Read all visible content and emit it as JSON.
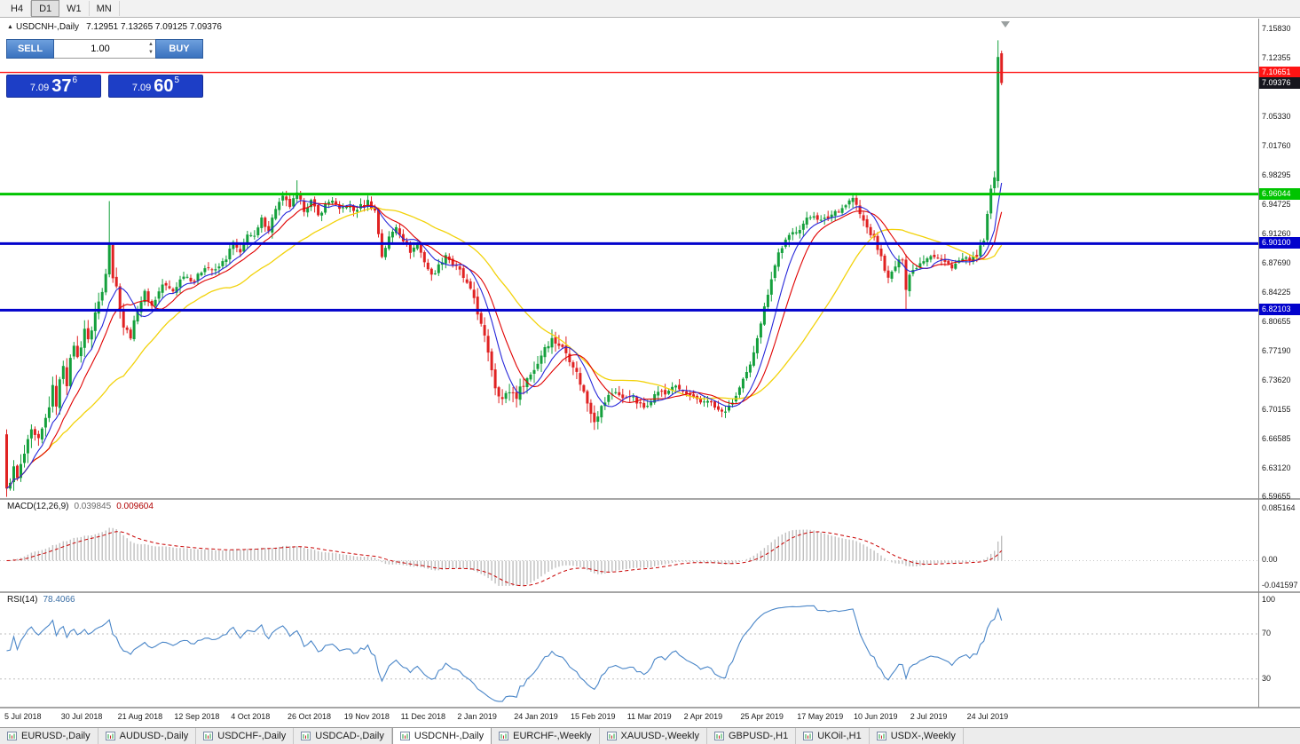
{
  "toolbar": {
    "periods": [
      {
        "label": "H4",
        "active": false
      },
      {
        "label": "D1",
        "active": true
      },
      {
        "label": "W1",
        "active": false
      },
      {
        "label": "MN",
        "active": false
      }
    ]
  },
  "chart_header": {
    "marker": "▲",
    "title": "USDCNH-,Daily",
    "ohlc": "7.12951 7.13265 7.09125 7.09376"
  },
  "trade_panel": {
    "sell_label": "SELL",
    "buy_label": "BUY",
    "volume": "1.00",
    "sell_price": {
      "base": "7.09",
      "pips": "37",
      "point": "6"
    },
    "buy_price": {
      "base": "7.09",
      "pips": "60",
      "point": "5"
    }
  },
  "icons": {
    "volume_up": "▲",
    "volume_down": "▼",
    "title_marker": "▲",
    "shift_marker": "▼",
    "tab_chart_icon": "mini-chart-window"
  },
  "chart_data": {
    "type": "candlestick",
    "symbol": "USDCNH-",
    "timeframe": "Daily",
    "bars": 282,
    "current": {
      "open": 7.12951,
      "high": 7.13265,
      "low": 7.09125,
      "close": 7.09376
    },
    "price_axis": {
      "min": 6.59655,
      "max": 7.1583,
      "ticks": [
        7.1583,
        7.12355,
        7.0533,
        7.0176,
        6.98295,
        6.94725,
        6.9126,
        6.8769,
        6.84225,
        6.80655,
        6.7719,
        6.7362,
        6.70155,
        6.66585,
        6.6312,
        6.59655
      ]
    },
    "price_lines": [
      {
        "price": 7.10651,
        "color": "#ff1414",
        "width": 1.4
      },
      {
        "price": 6.96044,
        "color": "#00c400",
        "width": 3
      },
      {
        "price": 6.901,
        "color": "#0202cc",
        "width": 3
      },
      {
        "price": 6.82103,
        "color": "#0202cc",
        "width": 3
      }
    ],
    "current_price_badge": {
      "price": 7.09376,
      "color": "#16161e"
    },
    "date_labels": [
      "5 Jul 2018",
      "30 Jul 2018",
      "21 Aug 2018",
      "12 Sep 2018",
      "4 Oct 2018",
      "26 Oct 2018",
      "19 Nov 2018",
      "11 Dec 2018",
      "2 Jan 2019",
      "24 Jan 2019",
      "15 Feb 2019",
      "11 Mar 2019",
      "2 Apr 2019",
      "25 Apr 2019",
      "17 May 2019",
      "10 Jun 2019",
      "2 Jul 2019",
      "24 Jul 2019"
    ],
    "colors": {
      "bull": "#14a03c",
      "bear": "#e02222",
      "ma_fast": "#2626d9",
      "ma_mid": "#e00000",
      "ma_slow": "#f2d20a",
      "macd_hist": "#bfbfbf",
      "macd_signal": "#c80000",
      "rsi": "#4a86c8",
      "badge_current": "#16161e"
    },
    "close_anchors": [
      [
        0,
        6.607
      ],
      [
        2,
        6.63
      ],
      [
        3,
        6.618
      ],
      [
        5,
        6.648
      ],
      [
        7,
        6.673
      ],
      [
        9,
        6.662
      ],
      [
        11,
        6.69
      ],
      [
        13,
        6.726
      ],
      [
        14,
        6.71
      ],
      [
        16,
        6.758
      ],
      [
        17,
        6.735
      ],
      [
        19,
        6.782
      ],
      [
        20,
        6.762
      ],
      [
        22,
        6.8
      ],
      [
        23,
        6.782
      ],
      [
        25,
        6.818
      ],
      [
        27,
        6.843
      ],
      [
        28,
        6.87
      ],
      [
        29,
        6.905
      ],
      [
        30,
        6.862
      ],
      [
        31,
        6.848
      ],
      [
        33,
        6.802
      ],
      [
        35,
        6.79
      ],
      [
        37,
        6.822
      ],
      [
        39,
        6.842
      ],
      [
        41,
        6.826
      ],
      [
        44,
        6.852
      ],
      [
        47,
        6.844
      ],
      [
        50,
        6.864
      ],
      [
        53,
        6.856
      ],
      [
        56,
        6.874
      ],
      [
        59,
        6.868
      ],
      [
        62,
        6.884
      ],
      [
        64,
        6.902
      ],
      [
        66,
        6.888
      ],
      [
        68,
        6.914
      ],
      [
        70,
        6.908
      ],
      [
        72,
        6.93
      ],
      [
        74,
        6.918
      ],
      [
        76,
        6.944
      ],
      [
        78,
        6.956
      ],
      [
        80,
        6.946
      ],
      [
        82,
        6.96
      ],
      [
        84,
        6.942
      ],
      [
        86,
        6.952
      ],
      [
        88,
        6.934
      ],
      [
        90,
        6.948
      ],
      [
        92,
        6.954
      ],
      [
        94,
        6.94
      ],
      [
        96,
        6.948
      ],
      [
        98,
        6.94
      ],
      [
        100,
        6.946
      ],
      [
        102,
        6.952
      ],
      [
        104,
        6.94
      ],
      [
        106,
        6.886
      ],
      [
        108,
        6.908
      ],
      [
        110,
        6.922
      ],
      [
        112,
        6.906
      ],
      [
        114,
        6.892
      ],
      [
        116,
        6.9
      ],
      [
        118,
        6.88
      ],
      [
        120,
        6.862
      ],
      [
        122,
        6.874
      ],
      [
        124,
        6.888
      ],
      [
        126,
        6.876
      ],
      [
        128,
        6.868
      ],
      [
        130,
        6.852
      ],
      [
        132,
        6.836
      ],
      [
        134,
        6.802
      ],
      [
        136,
        6.772
      ],
      [
        138,
        6.73
      ],
      [
        140,
        6.714
      ],
      [
        142,
        6.724
      ],
      [
        144,
        6.718
      ],
      [
        146,
        6.734
      ],
      [
        148,
        6.744
      ],
      [
        150,
        6.758
      ],
      [
        152,
        6.778
      ],
      [
        154,
        6.786
      ],
      [
        156,
        6.78
      ],
      [
        158,
        6.77
      ],
      [
        160,
        6.756
      ],
      [
        162,
        6.734
      ],
      [
        164,
        6.71
      ],
      [
        166,
        6.69
      ],
      [
        168,
        6.704
      ],
      [
        170,
        6.718
      ],
      [
        172,
        6.724
      ],
      [
        174,
        6.714
      ],
      [
        176,
        6.72
      ],
      [
        178,
        6.71
      ],
      [
        180,
        6.704
      ],
      [
        182,
        6.714
      ],
      [
        184,
        6.724
      ],
      [
        186,
        6.72
      ],
      [
        188,
        6.73
      ],
      [
        190,
        6.726
      ],
      [
        192,
        6.72
      ],
      [
        194,
        6.714
      ],
      [
        196,
        6.71
      ],
      [
        198,
        6.714
      ],
      [
        200,
        6.704
      ],
      [
        202,
        6.698
      ],
      [
        204,
        6.704
      ],
      [
        206,
        6.718
      ],
      [
        208,
        6.736
      ],
      [
        210,
        6.754
      ],
      [
        212,
        6.79
      ],
      [
        214,
        6.824
      ],
      [
        216,
        6.86
      ],
      [
        218,
        6.89
      ],
      [
        220,
        6.904
      ],
      [
        222,
        6.914
      ],
      [
        224,
        6.92
      ],
      [
        226,
        6.93
      ],
      [
        228,
        6.936
      ],
      [
        230,
        6.928
      ],
      [
        232,
        6.932
      ],
      [
        234,
        6.94
      ],
      [
        236,
        6.944
      ],
      [
        238,
        6.952
      ],
      [
        239,
        6.956
      ],
      [
        241,
        6.936
      ],
      [
        243,
        6.92
      ],
      [
        245,
        6.906
      ],
      [
        247,
        6.884
      ],
      [
        249,
        6.858
      ],
      [
        251,
        6.874
      ],
      [
        253,
        6.884
      ],
      [
        254,
        6.848
      ],
      [
        255,
        6.864
      ],
      [
        257,
        6.874
      ],
      [
        259,
        6.882
      ],
      [
        261,
        6.888
      ],
      [
        263,
        6.884
      ],
      [
        265,
        6.878
      ],
      [
        267,
        6.874
      ],
      [
        269,
        6.88
      ],
      [
        271,
        6.884
      ],
      [
        272,
        6.878
      ],
      [
        274,
        6.888
      ],
      [
        276,
        6.904
      ],
      [
        277,
        6.934
      ],
      [
        278,
        6.968
      ],
      [
        279,
        6.978
      ],
      [
        280,
        7.125
      ],
      [
        281,
        7.09376
      ]
    ],
    "bar_overrides": {
      "0": {
        "o": 6.672,
        "h": 6.678,
        "l": 6.597,
        "c": 6.607
      },
      "29": {
        "h": 6.952
      },
      "82": {
        "h": 6.977
      },
      "239": {
        "h": 6.962
      },
      "254": {
        "l": 6.822
      },
      "280": {
        "o": 6.976,
        "h": 7.1451,
        "l": 6.968,
        "c": 7.125
      },
      "281": {
        "o": 7.12951,
        "h": 7.13265,
        "l": 7.09125,
        "c": 7.09376
      }
    },
    "indicators": {
      "macd": {
        "label": "MACD(12,26,9)",
        "values": [
          "0.039845",
          "0.009604"
        ],
        "scale_ticks": [
          {
            "value": 0.085164,
            "label": "0.085164"
          },
          {
            "value": 0,
            "label": "0.00"
          },
          {
            "value": -0.041597,
            "label": "-0.041597"
          }
        ],
        "range": [
          -0.041597,
          0.085164
        ]
      },
      "rsi": {
        "label": "RSI(14)",
        "value": "78.4066",
        "scale_ticks": [
          {
            "value": 100,
            "label": "100"
          },
          {
            "value": 70,
            "label": "70"
          },
          {
            "value": 30,
            "label": "30"
          }
        ],
        "levels": [
          70,
          30
        ]
      }
    }
  },
  "tabs": {
    "items": [
      {
        "label": "EURUSD-,Daily",
        "active": false
      },
      {
        "label": "AUDUSD-,Daily",
        "active": false
      },
      {
        "label": "USDCHF-,Daily",
        "active": false
      },
      {
        "label": "USDCAD-,Daily",
        "active": false
      },
      {
        "label": "USDCNH-,Daily",
        "active": true
      },
      {
        "label": "EURCHF-,Weekly",
        "active": false
      },
      {
        "label": "XAUUSD-,Weekly",
        "active": false
      },
      {
        "label": "GBPUSD-,H1",
        "active": false
      },
      {
        "label": "UKOil-,H1",
        "active": false
      },
      {
        "label": "USDX-,Weekly",
        "active": false
      }
    ]
  }
}
